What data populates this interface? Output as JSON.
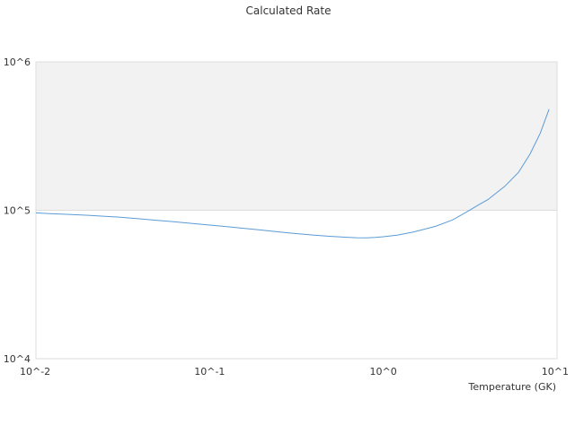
{
  "chart_data": {
    "type": "line",
    "title": "Calculated Rate",
    "xlabel": "Temperature (GK)",
    "ylabel": "",
    "x_scale": "log",
    "y_scale": "log",
    "xlim": [
      0.01,
      10
    ],
    "ylim": [
      10000,
      1000000
    ],
    "grid": true,
    "shaded_band": {
      "y_from": 100000,
      "y_to": 1000000,
      "color": "#f2f2f2"
    },
    "x_ticks": [
      {
        "value": 0.01,
        "label": "10^-2"
      },
      {
        "value": 0.1,
        "label": "10^-1"
      },
      {
        "value": 1,
        "label": "10^0"
      },
      {
        "value": 10,
        "label": "10^1"
      }
    ],
    "y_ticks": [
      {
        "value": 10000,
        "label": "10^4"
      },
      {
        "value": 100000,
        "label": "10^5"
      },
      {
        "value": 1000000,
        "label": "10^6"
      }
    ],
    "colors": {
      "line": "#5b9bd5",
      "grid": "#dddddd",
      "band": "#f2f2f2",
      "text": "#333333"
    },
    "series": [
      {
        "x": [
          0.01,
          0.012,
          0.015,
          0.02,
          0.025,
          0.03,
          0.04,
          0.05,
          0.06,
          0.08,
          0.1,
          0.12,
          0.15,
          0.2,
          0.25,
          0.3,
          0.4,
          0.5,
          0.6,
          0.7,
          0.8,
          0.9,
          1.0,
          1.2,
          1.5,
          2.0,
          2.5,
          3.0,
          3.5,
          4.0,
          5.0,
          6.0,
          7.0,
          8.0,
          9.0
        ],
        "y": [
          96000,
          95000,
          94000,
          92500,
          91000,
          90000,
          87500,
          85500,
          84000,
          81500,
          79500,
          78000,
          76000,
          73500,
          71500,
          70000,
          68000,
          66700,
          65900,
          65300,
          65200,
          65600,
          66300,
          68000,
          71500,
          78000,
          86000,
          97000,
          108000,
          118000,
          145000,
          180000,
          240000,
          330000,
          480000
        ]
      }
    ]
  }
}
